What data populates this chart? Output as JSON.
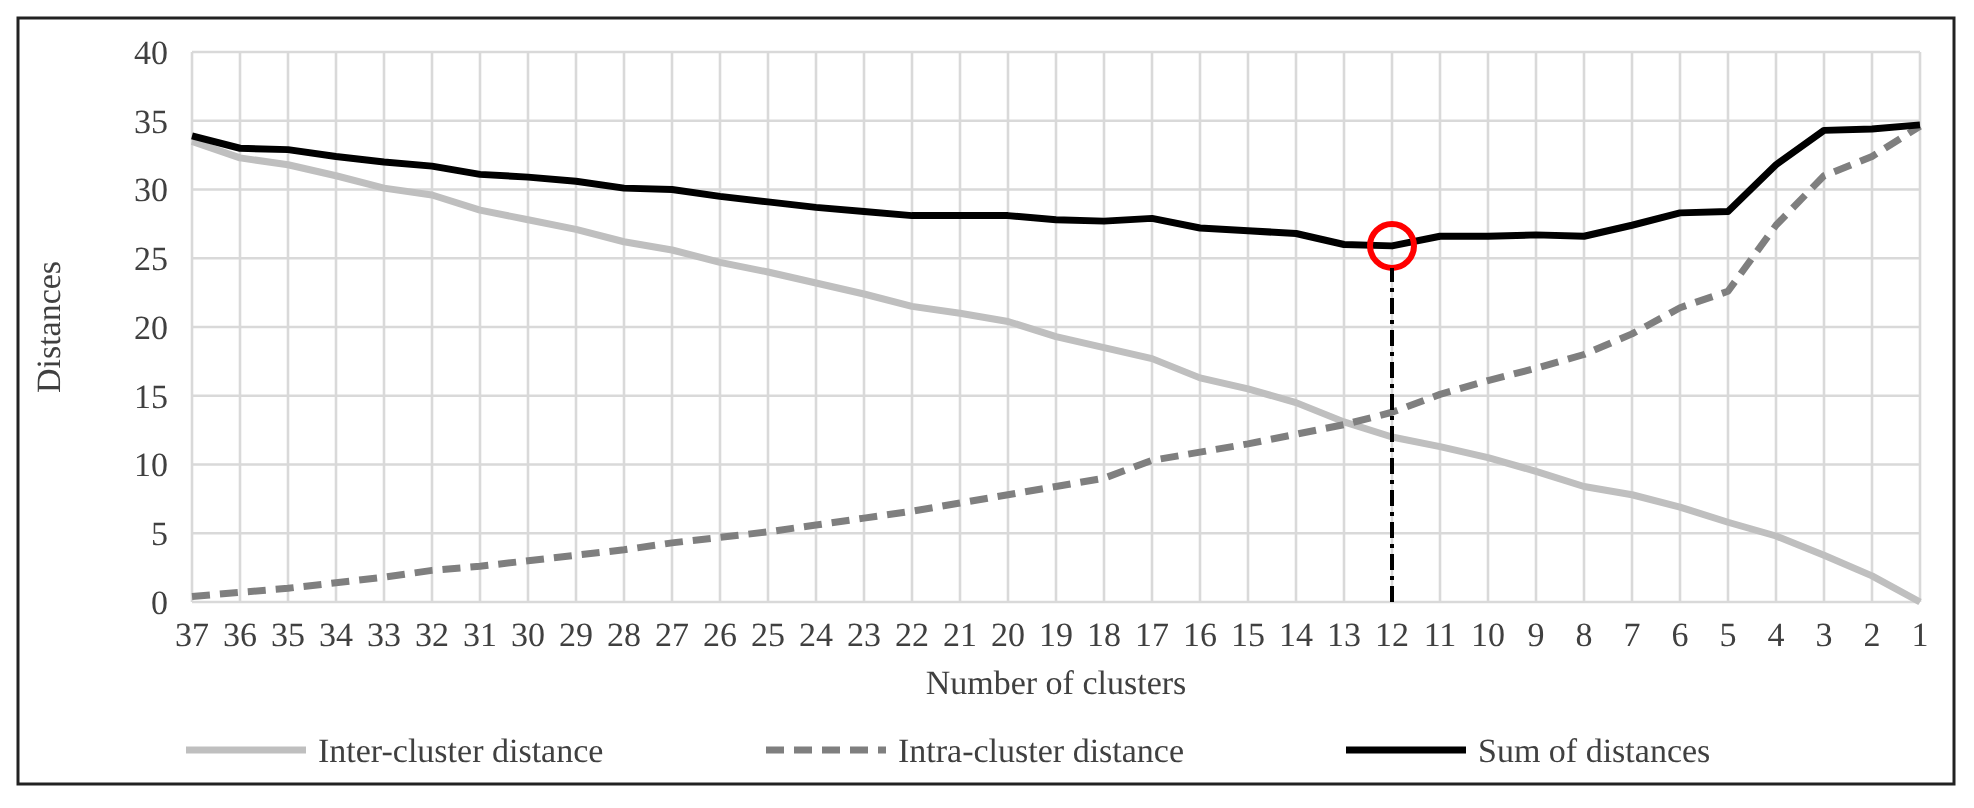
{
  "chart_data": {
    "type": "line",
    "ylabel": "Distances",
    "xlabel": "Number of clusters",
    "categories": [
      "37",
      "36",
      "35",
      "34",
      "33",
      "32",
      "31",
      "30",
      "29",
      "28",
      "27",
      "26",
      "25",
      "24",
      "23",
      "22",
      "21",
      "20",
      "19",
      "18",
      "17",
      "16",
      "15",
      "14",
      "13",
      "12",
      "11",
      "10",
      "9",
      "8",
      "7",
      "6",
      "5",
      "4",
      "3",
      "2",
      "1"
    ],
    "ylim": [
      0,
      40
    ],
    "yticks": [
      0,
      5,
      10,
      15,
      20,
      25,
      30,
      35,
      40
    ],
    "grid": true,
    "legend": "bottom",
    "series": [
      {
        "name": "Inter-cluster distance",
        "color": "#bfbfbf",
        "line_style": "solid",
        "values": [
          33.5,
          32.3,
          31.8,
          31,
          30.1,
          29.6,
          28.5,
          27.8,
          27.1,
          26.2,
          25.6,
          24.7,
          24,
          23.2,
          22.4,
          21.5,
          21,
          20.4,
          19.3,
          18.5,
          17.7,
          16.3,
          15.5,
          14.5,
          13.1,
          12,
          11.3,
          10.5,
          9.5,
          8.4,
          7.8,
          6.9,
          5.8,
          4.8,
          3.4,
          1.9,
          0
        ]
      },
      {
        "name": "Intra-cluster distance",
        "color": "#7f7f7f",
        "line_style": "dashed",
        "values": [
          0.4,
          0.7,
          1,
          1.4,
          1.8,
          2.3,
          2.6,
          3,
          3.4,
          3.8,
          4.3,
          4.7,
          5.1,
          5.6,
          6.1,
          6.6,
          7.2,
          7.8,
          8.4,
          9,
          10.3,
          10.9,
          11.5,
          12.2,
          12.9,
          13.8,
          15.1,
          16.1,
          17,
          18,
          19.5,
          21.4,
          22.6,
          27.4,
          31,
          32.4,
          34.6
        ]
      },
      {
        "name": "Sum of distances",
        "color": "#000000",
        "line_style": "solid",
        "values": [
          33.9,
          33,
          32.9,
          32.4,
          32,
          31.7,
          31.1,
          30.9,
          30.6,
          30.1,
          30,
          29.5,
          29.1,
          28.7,
          28.4,
          28.1,
          28.1,
          28.1,
          27.8,
          27.7,
          27.9,
          27.2,
          27,
          26.8,
          26,
          25.9,
          26.6,
          26.6,
          26.7,
          26.6,
          27.4,
          28.3,
          28.4,
          31.8,
          34.3,
          34.4,
          34.7
        ]
      },
      {
        "type": "scatter",
        "marker": "circle",
        "color": "#ff0000",
        "x": [
          "12"
        ],
        "values": [
          25.9
        ]
      }
    ],
    "ref_lines": [
      {
        "axis": "x",
        "value": "12",
        "color": "#000000",
        "line_style": "dashed"
      }
    ]
  }
}
